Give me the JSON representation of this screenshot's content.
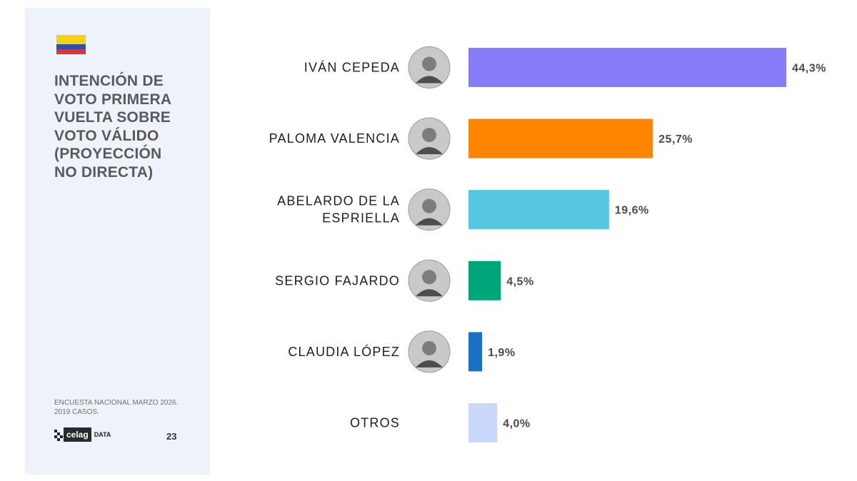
{
  "sidebar": {
    "title": "INTENCIÓN DE\nVOTO PRIMERA\nVUELTA SOBRE\nVOTO VÁLIDO\n(PROYECCIÓN\nNO DIRECTA)",
    "source": "ENCUESTA NACIONAL MARZO 2026.\n2019 CASOS.",
    "logo_brand": "celag",
    "logo_suffix": "DATA",
    "page_number": "23"
  },
  "chart_data": {
    "type": "bar",
    "orientation": "horizontal",
    "categories": [
      "IVÁN CEPEDA",
      "PALOMA VALENCIA",
      "ABELARDO DE LA ESPRIELLA",
      "SERGIO FAJARDO",
      "CLAUDIA LÓPEZ",
      "OTROS"
    ],
    "category_lines": [
      [
        "IVÁN CEPEDA"
      ],
      [
        "PALOMA VALENCIA"
      ],
      [
        "ABELARDO DE LA",
        "ESPRIELLA"
      ],
      [
        "SERGIO FAJARDO"
      ],
      [
        "CLAUDIA LÓPEZ"
      ],
      [
        "OTROS"
      ]
    ],
    "values": [
      44.3,
      25.7,
      19.6,
      4.5,
      1.9,
      4.0
    ],
    "value_labels": [
      "44,3%",
      "25,7%",
      "19,6%",
      "4,5%",
      "1,9%",
      "4,0%"
    ],
    "colors": [
      "#877cf7",
      "#ff8400",
      "#56c7e1",
      "#00a57a",
      "#1c6fc4",
      "#c9d9fb"
    ],
    "photos": [
      true,
      true,
      true,
      true,
      true,
      false
    ],
    "xlim": [
      0,
      44.3
    ],
    "grid": false,
    "legend": "none"
  }
}
